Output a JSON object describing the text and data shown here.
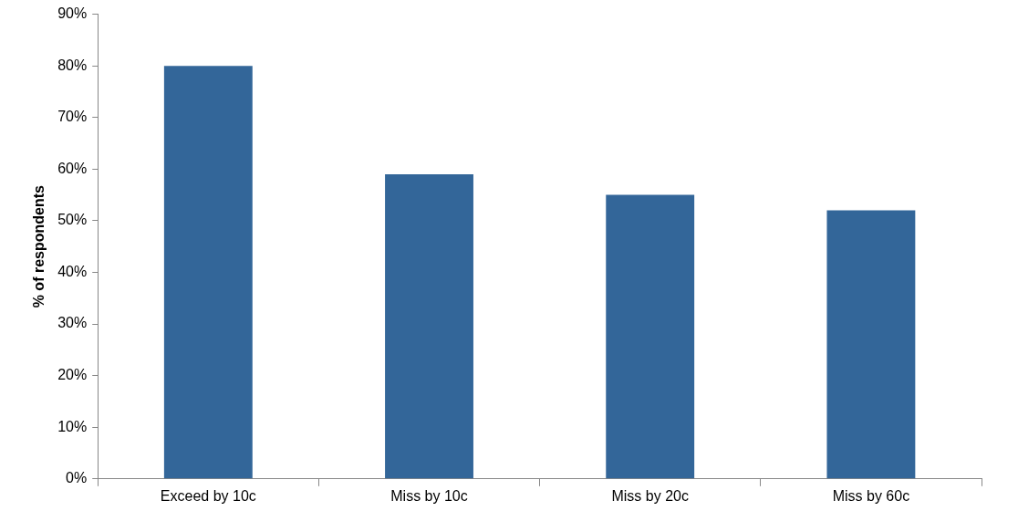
{
  "chart_data": {
    "type": "bar",
    "ylabel": "% of respondents",
    "categories": [
      "Exceed by 10c",
      "Miss by 10c",
      "Miss by 20c",
      "Miss by 60c"
    ],
    "values": [
      80,
      59,
      55,
      52
    ],
    "color": "#336699",
    "ylim": [
      0,
      90
    ],
    "yticks": [
      {
        "value": 0,
        "label": "0%"
      },
      {
        "value": 10,
        "label": "10%"
      },
      {
        "value": 20,
        "label": "20%"
      },
      {
        "value": 30,
        "label": "30%"
      },
      {
        "value": 40,
        "label": "40%"
      },
      {
        "value": 50,
        "label": "50%"
      },
      {
        "value": 60,
        "label": "60%"
      },
      {
        "value": 70,
        "label": "70%"
      },
      {
        "value": 80,
        "label": "80%"
      },
      {
        "value": 90,
        "label": "90%"
      }
    ],
    "grid": false,
    "legend": false
  }
}
